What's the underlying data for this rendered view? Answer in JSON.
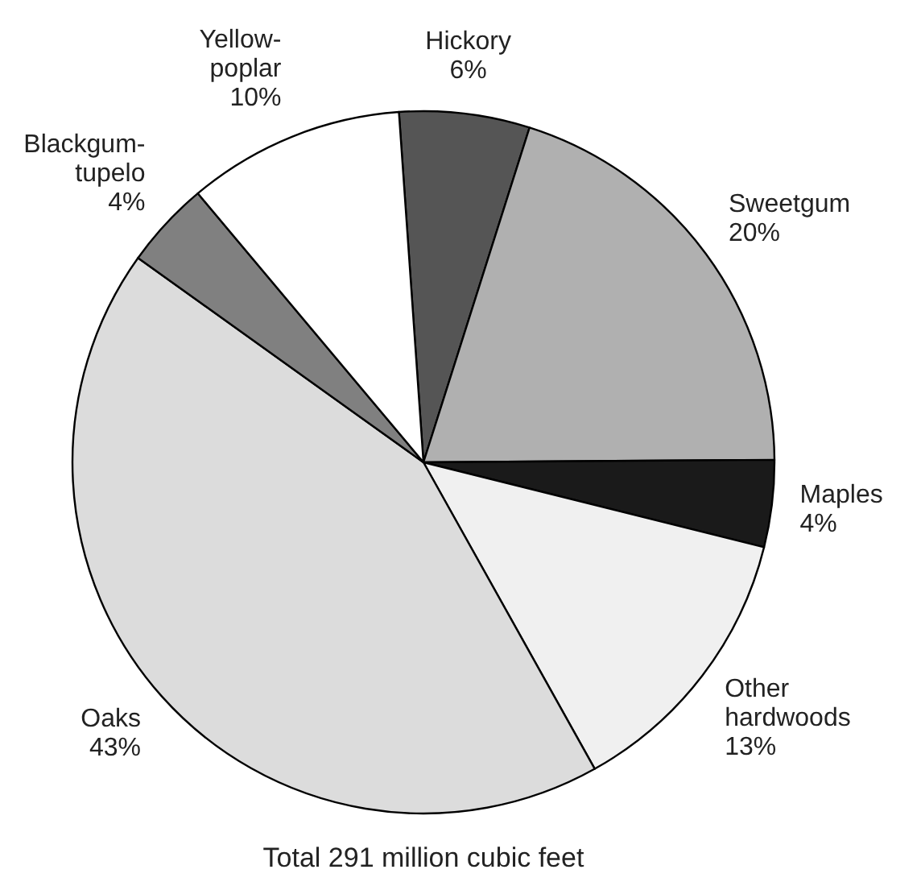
{
  "chart_data": {
    "type": "pie",
    "title": "Total 291 million cubic feet",
    "categories": [
      "Hickory",
      "Sweetgum",
      "Maples",
      "Other hardwoods",
      "Oaks",
      "Blackgum-tupelo",
      "Yellow-poplar"
    ],
    "values": [
      6,
      20,
      4,
      13,
      43,
      4,
      10
    ],
    "colors": [
      "#555555",
      "#b0b0b0",
      "#1a1a1a",
      "#f0f0f0",
      "#dcdcdc",
      "#808080",
      "#ffffff"
    ],
    "value_labels": [
      "6%",
      "20%",
      "4%",
      "13%",
      "43%",
      "4%",
      "10%"
    ]
  }
}
